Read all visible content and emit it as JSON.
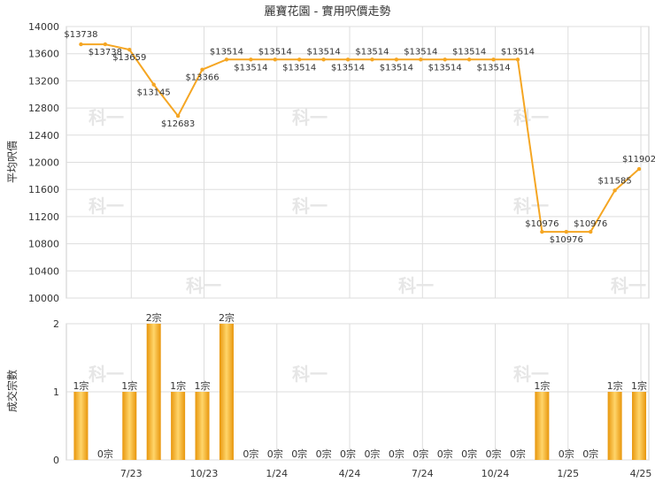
{
  "chart_data": [
    {
      "type": "line",
      "title": "麗寶花園 - 實用呎價走勢",
      "ylabel": "平均呎價",
      "ylim": [
        10000,
        14000
      ],
      "yticks": [
        10000,
        10400,
        10800,
        11200,
        11600,
        12000,
        12400,
        12800,
        13200,
        13600,
        14000
      ],
      "grid": true,
      "series": [
        {
          "color": "#f5a623",
          "values": [
            13738,
            13738,
            13659,
            13145,
            12683,
            13366,
            13514,
            13514,
            13514,
            13514,
            13514,
            13514,
            13514,
            13514,
            13514,
            13514,
            13514,
            13514,
            13514,
            10976,
            10976,
            10976,
            11585,
            11902
          ],
          "labels": [
            "$13738",
            "$13738",
            "$13659",
            "$13145",
            "$12683",
            "$13366",
            "$13514",
            "$13514",
            "$13514",
            "$13514",
            "$13514",
            "$13514",
            "$13514",
            "$13514",
            "$13514",
            "$13514",
            "$13514",
            "$13514",
            "$13514",
            "$10976",
            "$10976",
            "$10976",
            "$11585",
            "$11902"
          ]
        }
      ]
    },
    {
      "type": "bar",
      "ylabel": "成交宗數",
      "ylim": [
        0,
        2
      ],
      "yticks": [
        0,
        1,
        2
      ],
      "grid": true,
      "series": [
        {
          "color": "#f5a623",
          "values": [
            1,
            0,
            1,
            2,
            1,
            1,
            2,
            0,
            0,
            0,
            0,
            0,
            0,
            0,
            0,
            0,
            0,
            0,
            0,
            1,
            0,
            0,
            1,
            1
          ],
          "labels": [
            "1宗",
            "0宗",
            "1宗",
            "2宗",
            "1宗",
            "1宗",
            "2宗",
            "0宗",
            "0宗",
            "0宗",
            "0宗",
            "0宗",
            "0宗",
            "0宗",
            "0宗",
            "0宗",
            "0宗",
            "0宗",
            "0宗",
            "1宗",
            "0宗",
            "0宗",
            "1宗",
            "1宗"
          ]
        }
      ],
      "xticks": [
        {
          "index": 2,
          "label": "7/23"
        },
        {
          "index": 5,
          "label": "10/23"
        },
        {
          "index": 8,
          "label": "1/24"
        },
        {
          "index": 11,
          "label": "4/24"
        },
        {
          "index": 14,
          "label": "7/24"
        },
        {
          "index": 17,
          "label": "10/24"
        },
        {
          "index": 20,
          "label": "1/25"
        },
        {
          "index": 23,
          "label": "4/25"
        }
      ]
    }
  ],
  "watermark": "科一"
}
